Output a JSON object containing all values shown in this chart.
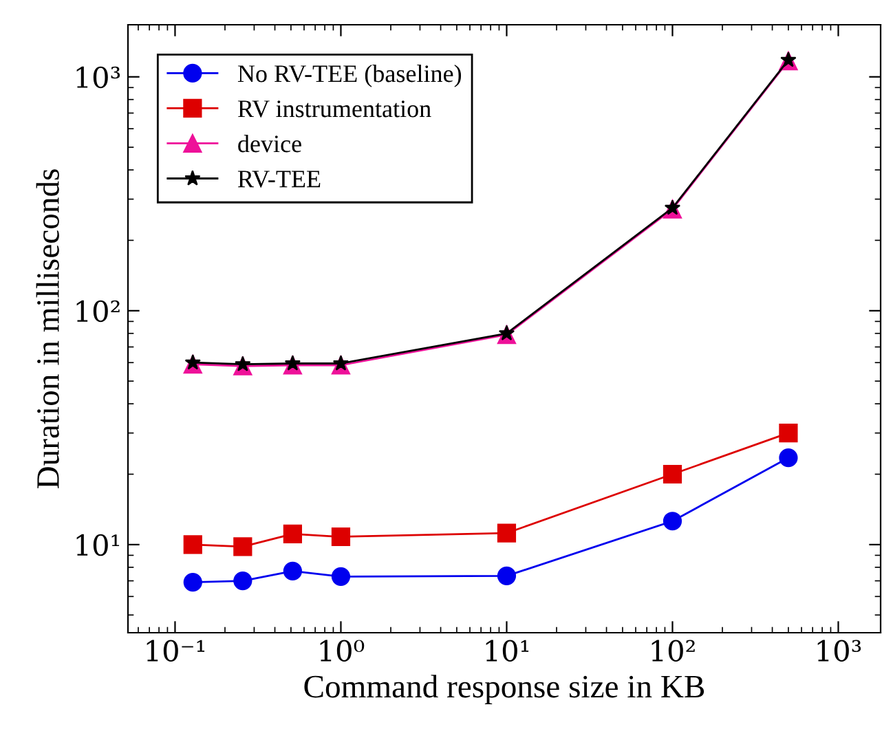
{
  "chart_data": {
    "type": "line",
    "xlabel": "Command response size in KB",
    "ylabel": "Duration in milliseconds",
    "log": "xy",
    "x": [
      0.128,
      0.256,
      0.512,
      1,
      10,
      100,
      500
    ],
    "xlim": [
      0.052,
      1800
    ],
    "ylim": [
      4.2,
      1670
    ],
    "xticks": [
      {
        "value": 0.1,
        "label": "10⁻¹"
      },
      {
        "value": 1,
        "label": "10⁰"
      },
      {
        "value": 10,
        "label": "10¹"
      },
      {
        "value": 100,
        "label": "10²"
      },
      {
        "value": 1000,
        "label": "10³"
      }
    ],
    "yticks": [
      {
        "value": 10,
        "label": "10¹"
      },
      {
        "value": 100,
        "label": "10²"
      },
      {
        "value": 1000,
        "label": "10³"
      }
    ],
    "legend": "top left",
    "grid": false,
    "series": [
      {
        "name": "No RV-TEE (baseline)",
        "color": "#0000ee",
        "marker": "circle",
        "values": [
          6.9,
          7.0,
          7.7,
          7.3,
          7.35,
          12.6,
          23.5
        ]
      },
      {
        "name": "RV instrumentation",
        "color": "#dd0000",
        "marker": "square",
        "values": [
          10,
          9.8,
          11.1,
          10.8,
          11.2,
          20,
          30
        ]
      },
      {
        "name": "device",
        "color": "#ee1199",
        "marker": "triangle",
        "values": [
          59,
          58,
          58.5,
          58.5,
          79,
          272,
          1170
        ]
      },
      {
        "name": "RV-TEE",
        "color": "#000000",
        "marker": "star",
        "values": [
          60,
          59,
          59.5,
          59.5,
          80,
          275,
          1180
        ]
      }
    ]
  }
}
